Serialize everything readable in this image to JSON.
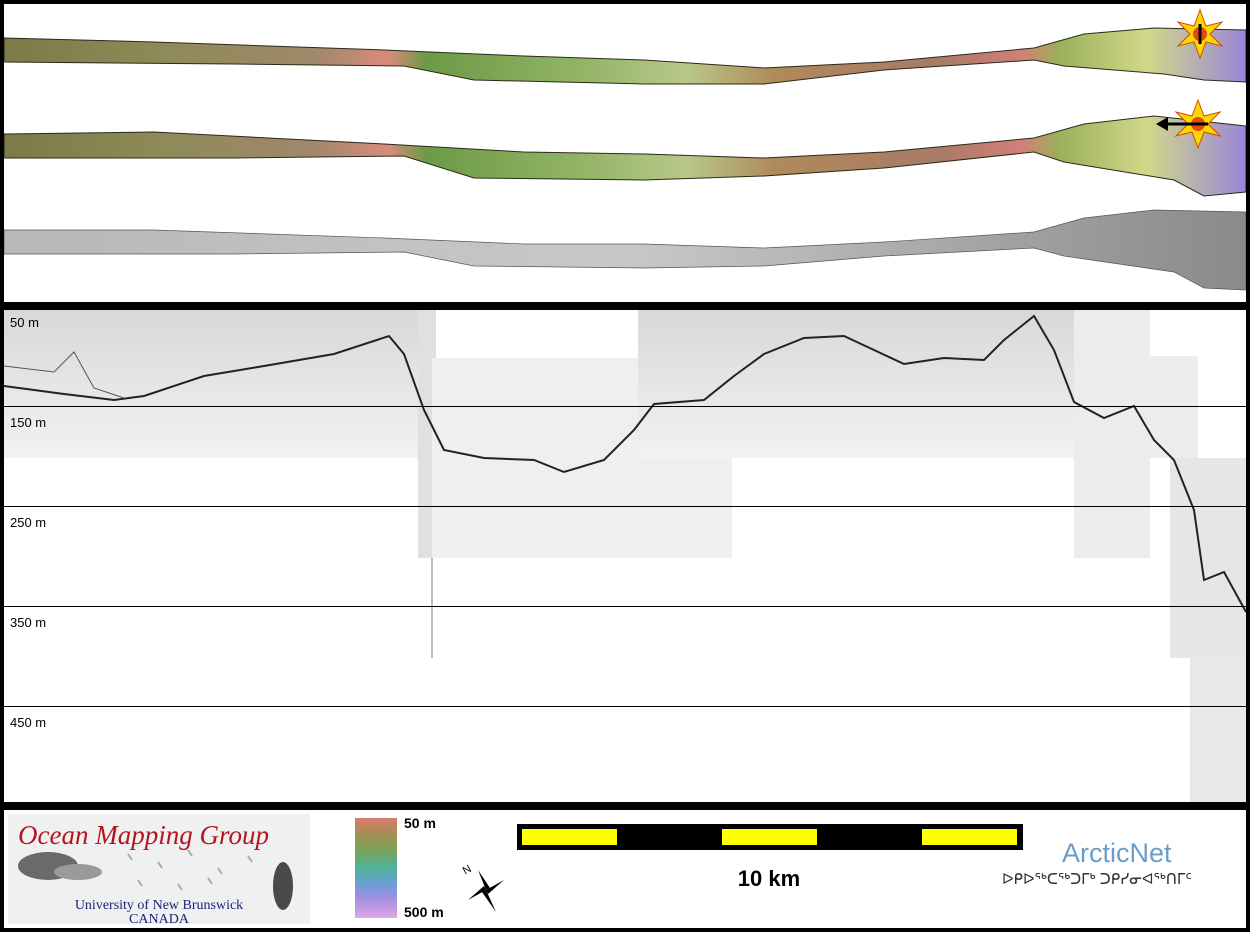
{
  "profile": {
    "depth_labels": [
      "50 m",
      "150 m",
      "250 m",
      "350 m",
      "450 m"
    ]
  },
  "legend": {
    "logo": {
      "title": "Ocean Mapping Group",
      "university": "University of New Brunswick",
      "country": "CANADA"
    },
    "colorbar": {
      "top_label": "50 m",
      "bottom_label": "500 m"
    },
    "scale": {
      "label": "10 km"
    },
    "arcticnet": {
      "name": "ArcticNet",
      "syllabics": "ᐅᑭᐅᖅᑕᖅᑐᒥᒃ ᑐᑭᓯᓂᐊᖅᑎᒥᑦ"
    },
    "north_label": "N"
  }
}
